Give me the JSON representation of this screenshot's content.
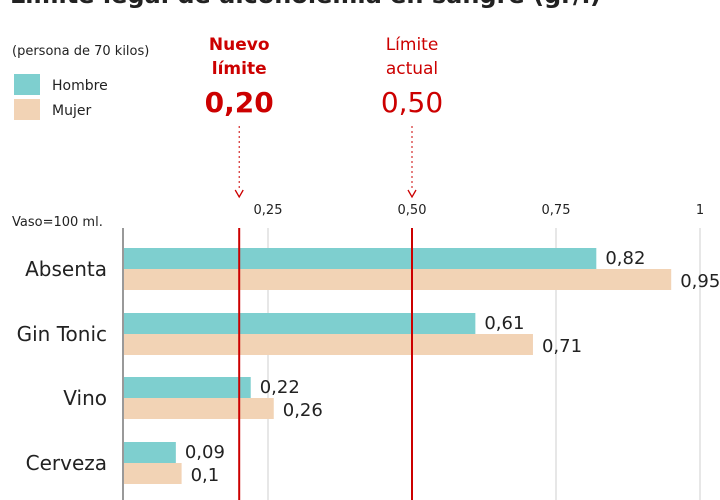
{
  "chart_data": {
    "type": "bar",
    "orientation": "horizontal",
    "title": "Límite legal de alcoholemia en sangre (gr/l)",
    "subtitle": "(persona de 70 kilos)",
    "note": "Vaso=100 ml.",
    "categories": [
      "Absenta",
      "Gin Tonic",
      "Vino",
      "Cerveza"
    ],
    "series": [
      {
        "name": "Hombre",
        "color": "#7ecfcf",
        "values": [
          0.82,
          0.61,
          0.22,
          0.09
        ]
      },
      {
        "name": "Mujer",
        "color": "#f2d3b5",
        "values": [
          0.95,
          0.71,
          0.26,
          0.1
        ]
      }
    ],
    "value_labels": {
      "Hombre": [
        "0,82",
        "0,61",
        "0,22",
        "0,09"
      ],
      "Mujer": [
        "0,95",
        "0,71",
        "0,26",
        "0,1"
      ]
    },
    "xlim": [
      0,
      1
    ],
    "xticks": [
      0.25,
      0.5,
      0.75,
      1
    ],
    "xtick_labels": [
      "0,25",
      "0,50",
      "0,75",
      "1"
    ],
    "grid": true,
    "legend": "top-left",
    "reference_lines": [
      {
        "value": 0.2,
        "label_line1": "Nuevo",
        "label_line2": "límite",
        "value_label": "0,20",
        "bold": true,
        "color": "#cc0000"
      },
      {
        "value": 0.5,
        "label_line1": "Límite",
        "label_line2": "actual",
        "value_label": "0,50",
        "bold": false,
        "color": "#cc0000"
      }
    ]
  }
}
